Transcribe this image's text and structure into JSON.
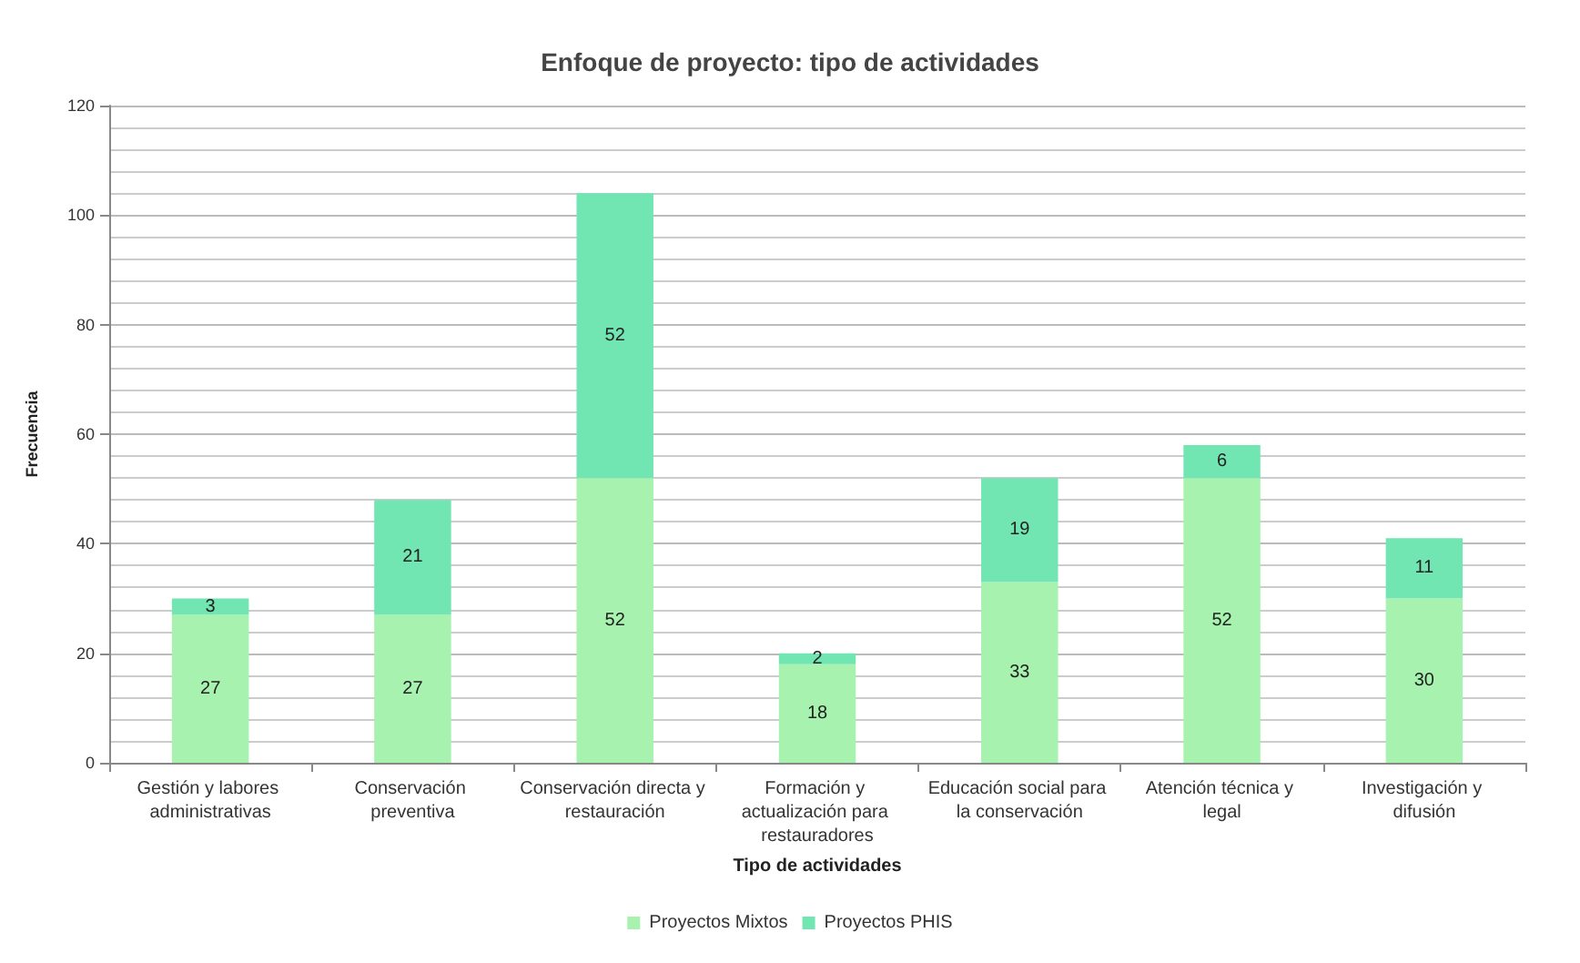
{
  "chart_data": {
    "type": "bar",
    "title": "Enfoque de proyecto: tipo de actividades",
    "xlabel": "Tipo de actividades",
    "ylabel": "Frecuencia",
    "categories": [
      "Gestión y labores administrativas",
      "Conservación preventiva",
      "Conservación directa y restauración",
      "Formación y actualización para restauradores",
      "Educación social para la conservación",
      "Atención técnica y legal",
      "Investigación y difusión"
    ],
    "stacked": true,
    "data_labels": true,
    "grid": "y",
    "legend": "bottom",
    "series": [
      {
        "name": "Proyectos Mixtos",
        "color": "#a6f2ae",
        "values": [
          27,
          27,
          52,
          18,
          33,
          52,
          30
        ]
      },
      {
        "name": "Proyectos PHIS",
        "color": "#72e6b2",
        "values": [
          3,
          21,
          52,
          2,
          19,
          6,
          11
        ]
      }
    ],
    "ylim": [
      0,
      120
    ],
    "yticks": [
      0,
      20,
      40,
      60,
      80,
      100,
      120
    ]
  }
}
